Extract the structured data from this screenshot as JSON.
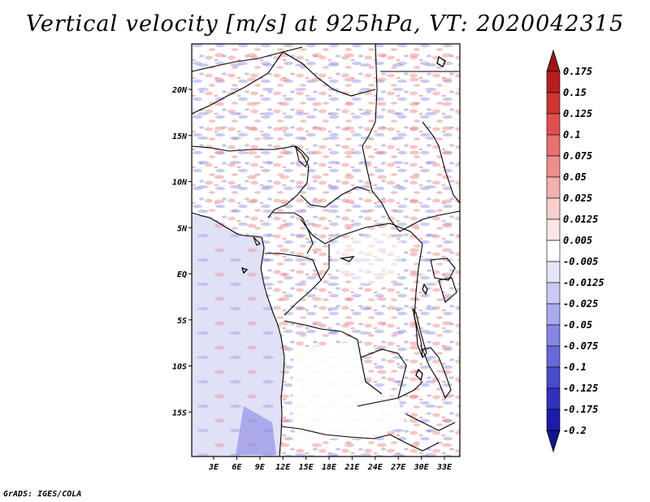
{
  "title": "Vertical velocity [m/s] at 925hPa, VT: 2020042315",
  "footer": "GrADS: IGES/COLA",
  "map": {
    "lat_labels": [
      "20N",
      "15N",
      "10N",
      "5N",
      "EQ",
      "5S",
      "10S",
      "15S"
    ],
    "lat_values": [
      20,
      15,
      10,
      5,
      0,
      -5,
      -10,
      -15
    ],
    "lon_labels": [
      "3E",
      "6E",
      "9E",
      "12E",
      "15E",
      "18E",
      "21E",
      "24E",
      "27E",
      "30E",
      "33E"
    ],
    "lon_values": [
      3,
      6,
      9,
      12,
      15,
      18,
      21,
      24,
      27,
      30,
      33
    ],
    "lat_range": [
      -20,
      25
    ],
    "lon_range": [
      0,
      35
    ]
  },
  "colorbar": {
    "labels": [
      "0.175",
      "0.15",
      "0.125",
      "0.1",
      "0.075",
      "0.05",
      "0.025",
      "0.0125",
      "0.005",
      "-0.005",
      "-0.0125",
      "-0.025",
      "-0.05",
      "-0.075",
      "-0.1",
      "-0.125",
      "-0.175",
      "-0.2"
    ],
    "colors": [
      "#a01515",
      "#b81e1e",
      "#cf3535",
      "#e04f4f",
      "#e77070",
      "#ee8e8e",
      "#f4b0b0",
      "#f8cdcd",
      "#fbe6e6",
      "#ffffff",
      "#e4e4fb",
      "#cacaf6",
      "#a9a9ee",
      "#8686e4",
      "#6868d8",
      "#4a4acb",
      "#3030ba",
      "#1c1ca6",
      "#14148c"
    ]
  }
}
